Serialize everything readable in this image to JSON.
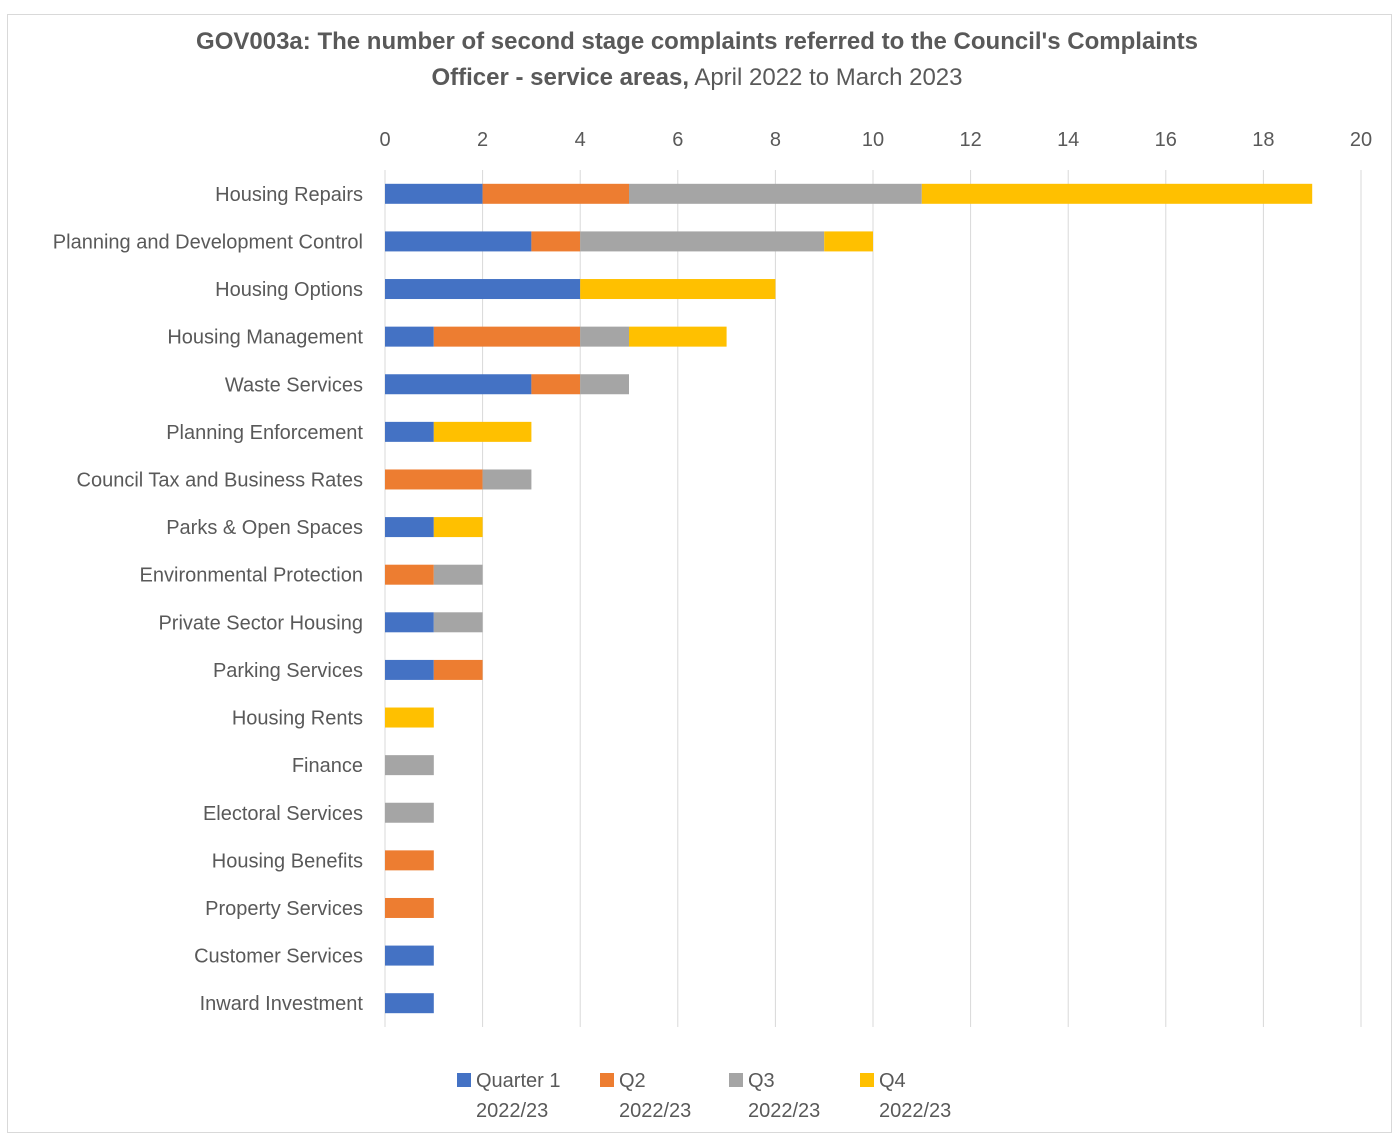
{
  "chart_data": {
    "type": "bar",
    "orientation": "horizontal",
    "stacked": true,
    "title_bold_line1": "GOV003a: The number of second stage complaints referred to the Council's Complaints",
    "title_bold_line2": "Officer - service areas,",
    "title_rest_line2": " April 2022 to March 2023",
    "xlim": [
      0,
      20
    ],
    "xticks": [
      0,
      2,
      4,
      6,
      8,
      10,
      12,
      14,
      16,
      18,
      20
    ],
    "grid": true,
    "legend_position": "bottom",
    "categories": [
      "Housing Repairs",
      "Planning and Development Control",
      "Housing Options",
      "Housing Management",
      "Waste Services",
      "Planning Enforcement",
      "Council Tax and Business Rates",
      "Parks & Open Spaces",
      "Environmental Protection",
      "Private Sector Housing",
      "Parking Services",
      "Housing Rents",
      "Finance",
      "Electoral Services",
      "Housing Benefits",
      "Property Services",
      "Customer Services",
      "Inward Investment"
    ],
    "series": [
      {
        "name_line1": "Quarter 1",
        "name_line2": "2022/23",
        "color": "#4472C4",
        "values": [
          2,
          3,
          4,
          1,
          3,
          1,
          0,
          1,
          0,
          1,
          1,
          0,
          0,
          0,
          0,
          0,
          1,
          1
        ]
      },
      {
        "name_line1": "Q2",
        "name_line2": "2022/23",
        "color": "#ED7D31",
        "values": [
          3,
          1,
          0,
          3,
          1,
          0,
          2,
          0,
          1,
          0,
          1,
          0,
          0,
          0,
          1,
          1,
          0,
          0
        ]
      },
      {
        "name_line1": "Q3",
        "name_line2": "2022/23",
        "color": "#A5A5A5",
        "values": [
          6,
          5,
          0,
          1,
          1,
          0,
          1,
          0,
          1,
          1,
          0,
          0,
          1,
          1,
          0,
          0,
          0,
          0
        ]
      },
      {
        "name_line1": "Q4",
        "name_line2": "2022/23",
        "color": "#FFC000",
        "values": [
          8,
          1,
          4,
          2,
          0,
          2,
          0,
          1,
          0,
          0,
          0,
          1,
          0,
          0,
          0,
          0,
          0,
          0
        ]
      }
    ]
  }
}
